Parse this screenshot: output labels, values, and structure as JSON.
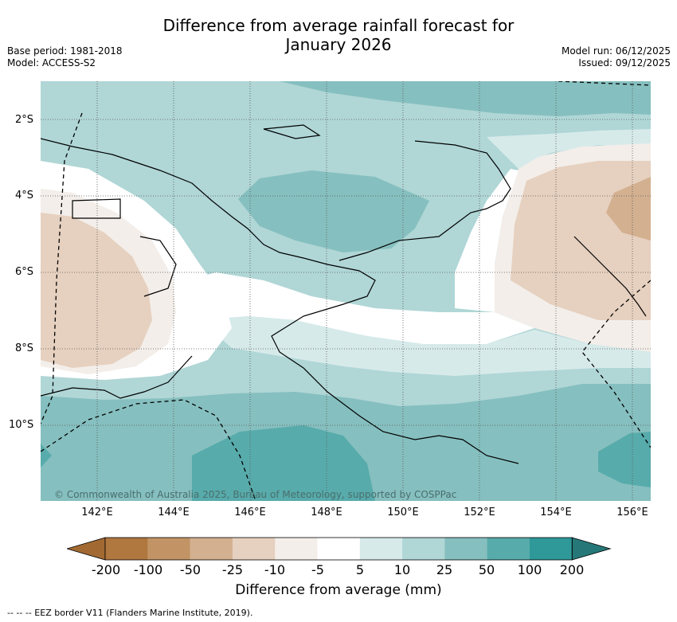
{
  "title": {
    "line1": "Difference from average rainfall forecast for",
    "line2": "January 2026"
  },
  "meta": {
    "base_period": "Base period: 1981-2018",
    "model": "Model: ACCESS-S2",
    "model_run": "Model run: 06/12/2025",
    "issued": "Issued: 09/12/2025"
  },
  "axes": {
    "lat_labels": [
      "2°S",
      "4°S",
      "6°S",
      "8°S",
      "10°S"
    ],
    "lon_labels": [
      "142°E",
      "144°E",
      "146°E",
      "148°E",
      "150°E",
      "152°E",
      "154°E",
      "156°E"
    ]
  },
  "copyright": "© Commonwealth of Australia 2025, Bureau of Meteorology, supported by COSPPac",
  "colorbar": {
    "title": "Difference from average (mm)",
    "labels": [
      "-200",
      "-100",
      "-50",
      "-25",
      "-10",
      "-5",
      "5",
      "10",
      "25",
      "50",
      "100",
      "200"
    ],
    "colors": [
      "#a26a32",
      "#b0773f",
      "#c29465",
      "#d3b090",
      "#e6d0bf",
      "#f3eee9",
      "#ffffff",
      "#d7eaea",
      "#b0d6d6",
      "#86bfbf",
      "#58abab",
      "#2f9898",
      "#267878"
    ]
  },
  "colors": {
    "gridline": "#555555",
    "coast": "#000000"
  },
  "footnote": "--  --  -- EEZ border V11 (Flanders Marine Institute, 2019)."
}
